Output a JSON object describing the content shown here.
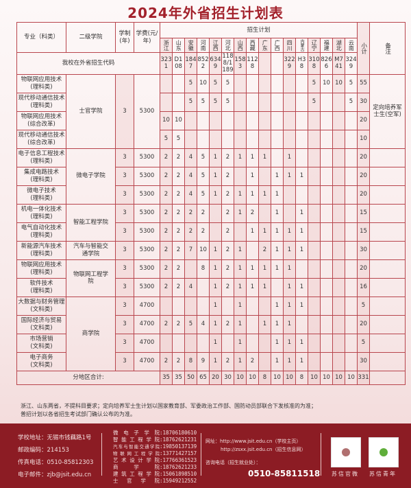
{
  "title": "2024年外省招生计划表",
  "headers": {
    "major": "专业（科类）",
    "college": "二级学院",
    "years": "学制(年)",
    "fee": "学费(元/年)",
    "plan": "招生计划",
    "subtotal": "小计",
    "note": "备注",
    "provinces": [
      "浙江",
      "山东",
      "安徽",
      "河南",
      "江西",
      "河北",
      "山西",
      "西藏",
      "广东",
      "广西",
      "四川",
      "内蒙古",
      "辽宁",
      "福建",
      "湖北",
      "云南"
    ]
  },
  "code_row": {
    "label": "我校在外省招生代码",
    "codes": [
      "3231",
      "D108",
      "1847",
      "8522",
      "6349",
      "1188/1189",
      "1583",
      "1128",
      "",
      "",
      "3229",
      "H38",
      "3108",
      "8266",
      "M741",
      "3249"
    ]
  },
  "groups": [
    {
      "college": "士官学院",
      "years": "3",
      "fee": "5300",
      "merged": true,
      "note": "定向培养军士生(空军)",
      "rows": [
        {
          "major": "物联网应用技术",
          "category": "(理科类)",
          "values": [
            "",
            "",
            "5",
            "10",
            "5",
            "5",
            "",
            "",
            "",
            "",
            "",
            "",
            "5",
            "10",
            "10",
            "5"
          ],
          "subtotal": "55"
        },
        {
          "major": "现代移动通信技术",
          "category": "(理科类)",
          "values": [
            "",
            "",
            "5",
            "5",
            "5",
            "5",
            "",
            "",
            "",
            "",
            "",
            "",
            "5",
            "",
            "",
            "5"
          ],
          "subtotal": "30"
        },
        {
          "major": "物联网应用技术",
          "category": "(综合改革)",
          "values": [
            "10",
            "10",
            "",
            "",
            "",
            "",
            "",
            "",
            "",
            "",
            "",
            "",
            "",
            "",
            "",
            ""
          ],
          "subtotal": "20"
        },
        {
          "major": "现代移动通信技术",
          "category": "(综合改革)",
          "values": [
            "5",
            "5",
            "",
            "",
            "",
            "",
            "",
            "",
            "",
            "",
            "",
            "",
            "",
            "",
            "",
            ""
          ],
          "subtotal": "10"
        }
      ]
    },
    {
      "college": "微电子学院",
      "years": "3",
      "fee": "5300",
      "merged": false,
      "note": "",
      "rows": [
        {
          "major": "电子信息工程技术",
          "category": "(理科类)",
          "values": [
            "2",
            "2",
            "4",
            "5",
            "1",
            "2",
            "1",
            "1",
            "1",
            "",
            "1",
            "",
            "",
            "",
            "",
            ""
          ],
          "subtotal": "20"
        },
        {
          "major": "集成电路技术",
          "category": "(理科类)",
          "values": [
            "2",
            "2",
            "4",
            "5",
            "1",
            "2",
            "",
            "1",
            "",
            "1",
            "1",
            "1",
            "",
            "",
            "",
            ""
          ],
          "subtotal": "20"
        },
        {
          "major": "微电子技术",
          "category": "(理科类)",
          "values": [
            "2",
            "2",
            "4",
            "5",
            "1",
            "2",
            "1",
            "1",
            "1",
            "1",
            "",
            "",
            "",
            "",
            "",
            ""
          ],
          "subtotal": "20"
        }
      ]
    },
    {
      "college": "智能工程学院",
      "years": "3",
      "fee": "5300",
      "merged": false,
      "note": "",
      "rows": [
        {
          "major": "机电一体化技术",
          "category": "(理科类)",
          "values": [
            "2",
            "2",
            "2",
            "2",
            "",
            "2",
            "1",
            "2",
            "",
            "1",
            "",
            "1",
            "",
            "",
            "",
            ""
          ],
          "subtotal": "15"
        },
        {
          "major": "电气自动化技术",
          "category": "(理科类)",
          "values": [
            "2",
            "2",
            "2",
            "2",
            "",
            "2",
            "",
            "1",
            "1",
            "1",
            "1",
            "1",
            "",
            "",
            "",
            ""
          ],
          "subtotal": "15"
        }
      ]
    },
    {
      "college": "汽车与智能交通学院",
      "years": "3",
      "fee": "5300",
      "merged": false,
      "note": "",
      "rows": [
        {
          "major": "新能源汽车技术",
          "category": "(理科类)",
          "values": [
            "2",
            "2",
            "7",
            "10",
            "1",
            "2",
            "1",
            "",
            "2",
            "1",
            "1",
            "1",
            "",
            "",
            "",
            ""
          ],
          "subtotal": "30"
        }
      ]
    },
    {
      "college": "物联网工程学院",
      "years": "3",
      "fee": "5300",
      "merged": false,
      "note": "",
      "rows": [
        {
          "major": "物联网应用技术",
          "category": "(理科类)",
          "values": [
            "2",
            "2",
            "",
            "8",
            "1",
            "2",
            "1",
            "1",
            "1",
            "1",
            "1",
            "",
            "",
            "",
            "",
            ""
          ],
          "subtotal": "20"
        },
        {
          "major": "软件技术",
          "category": "(理科类)",
          "values": [
            "2",
            "2",
            "4",
            "",
            "1",
            "2",
            "1",
            "1",
            "1",
            "",
            "1",
            "1",
            "",
            "",
            "",
            ""
          ],
          "subtotal": "16"
        }
      ]
    },
    {
      "college": "商学院",
      "years": "3",
      "fee": "4700",
      "merged": false,
      "note": "",
      "rows": [
        {
          "major": "大数据与财务管理",
          "category": "(文科类)",
          "values": [
            "",
            "",
            "",
            "",
            "1",
            "",
            "1",
            "",
            "",
            "1",
            "1",
            "1",
            "",
            "",
            "",
            ""
          ],
          "subtotal": "5"
        },
        {
          "major": "国际经济与贸易",
          "category": "(文科类)",
          "values": [
            "2",
            "2",
            "5",
            "4",
            "1",
            "2",
            "1",
            "",
            "1",
            "1",
            "1",
            "",
            "",
            "",
            "",
            ""
          ],
          "subtotal": "20"
        },
        {
          "major": "市场营销",
          "category": "(文科类)",
          "values": [
            "",
            "",
            "",
            "",
            "1",
            "",
            "1",
            "",
            "",
            "1",
            "1",
            "1",
            "",
            "",
            "",
            ""
          ],
          "subtotal": "5"
        },
        {
          "major": "电子商务",
          "category": "(文科类)",
          "values": [
            "2",
            "2",
            "8",
            "9",
            "1",
            "2",
            "1",
            "2",
            "",
            "1",
            "1",
            "1",
            "",
            "",
            "",
            ""
          ],
          "subtotal": "30"
        }
      ]
    }
  ],
  "total_row": {
    "label": "分地区合计:",
    "values": [
      "35",
      "35",
      "50",
      "65",
      "20",
      "30",
      "10",
      "10",
      "8",
      "10",
      "10",
      "8",
      "10",
      "10",
      "10",
      "10"
    ],
    "subtotal": "331"
  },
  "footnotes": [
    "浙江、山东两省，不提科目要求；定向培养军士生计划以国家教育部、军委政治工作部、国防动员部联合下发核准的为准；",
    "普招计划以各省招生考试部门确认公布的为准。"
  ],
  "footer": {
    "address": "学校地址：无锡市钱藕路1号",
    "postcode": "邮政编码：214153",
    "fax": "传真电话：0510-85812303",
    "email": "电子邮件：zjb@jsit.edu.cn",
    "college_phones": [
      {
        "name": "微电子学院",
        "phone": ":18706180610"
      },
      {
        "name": "智能工程学院",
        "phone": ":18762621231"
      },
      {
        "name": "汽车与智能交通学院",
        "phone": ":19850137139"
      },
      {
        "name": "物联网工程学院",
        "phone": ":13771427157"
      },
      {
        "name": "艺术设计学院",
        "phone": ":17766361523"
      },
      {
        "name": "商学院",
        "phone": ":18762621233"
      },
      {
        "name": "建筑工程学院",
        "phone": ":15061898510"
      },
      {
        "name": "士官学院",
        "phone": ":15949212552"
      }
    ],
    "website_label": "网址：",
    "website_1": "http://www.jsit.edu.cn（学校主页）",
    "website_2": "http://zsxx.jsit.edu.cn（招生信息网）",
    "consult_label": "咨询电话（招生就业处）：",
    "consult_phone": "0510-85811518",
    "qr_1_label": "苏信官微",
    "qr_2_label": "苏信青年"
  },
  "colors": {
    "accent": "#a3222c",
    "footer_bg": "#8c1c24",
    "border": "#b8444c"
  }
}
